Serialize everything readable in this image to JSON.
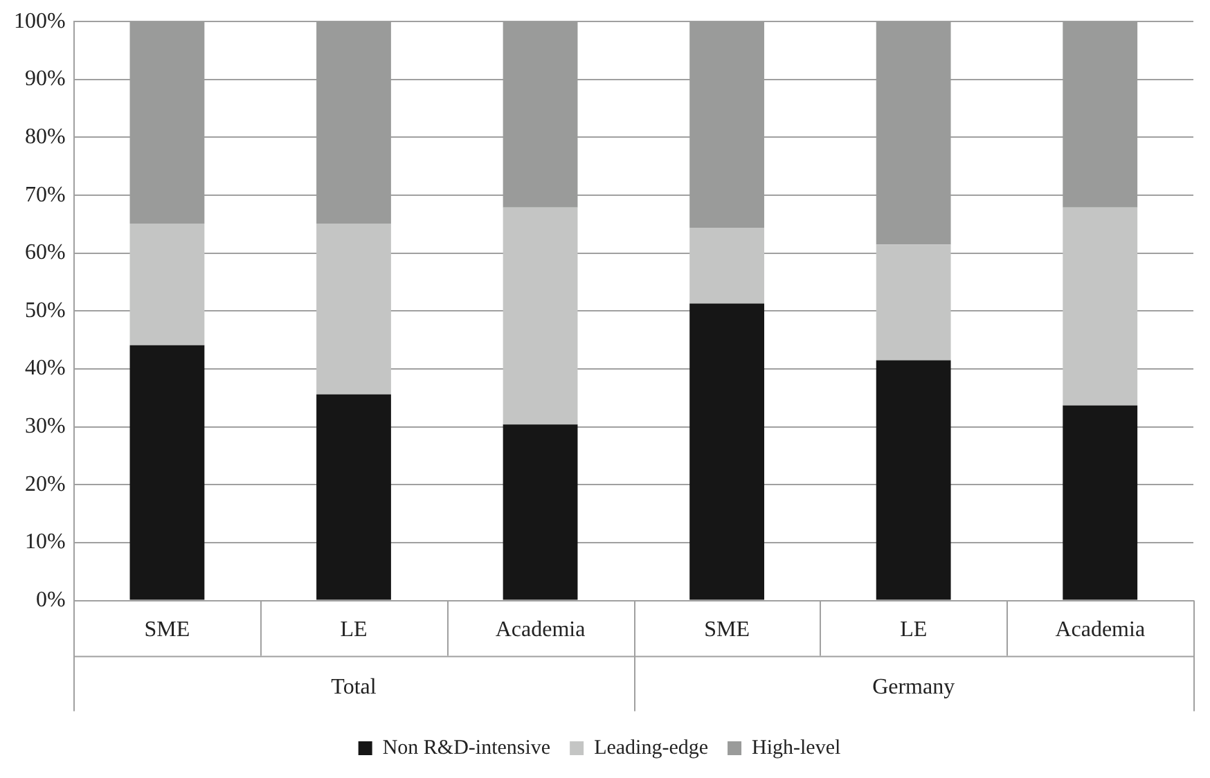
{
  "chart_data": {
    "type": "bar",
    "stacked": true,
    "categories": [
      "SME",
      "LE",
      "Academia",
      "SME",
      "LE",
      "Academia"
    ],
    "series": [
      {
        "name": "Non R&D-intensive",
        "color": "#161616",
        "values": [
          44.1,
          35.6,
          30.4,
          51.3,
          41.5,
          33.7
        ]
      },
      {
        "name": "Leading-edge",
        "color": "#c4c5c4",
        "values": [
          21.0,
          29.5,
          37.5,
          13.1,
          20.0,
          34.2
        ]
      },
      {
        "name": "High-level",
        "color": "#9a9b9a",
        "values": [
          34.9,
          34.9,
          32.1,
          35.6,
          38.5,
          32.1
        ]
      }
    ],
    "ylim": [
      0,
      100
    ],
    "yticks": [
      {
        "value": 0,
        "label": "0%"
      },
      {
        "value": 10,
        "label": "10%"
      },
      {
        "value": 20,
        "label": "20%"
      },
      {
        "value": 30,
        "label": "30%"
      },
      {
        "value": 40,
        "label": "40%"
      },
      {
        "value": 50,
        "label": "50%"
      },
      {
        "value": 60,
        "label": "60%"
      },
      {
        "value": 70,
        "label": "70%"
      },
      {
        "value": 80,
        "label": "80%"
      },
      {
        "value": 90,
        "label": "90%"
      },
      {
        "value": 100,
        "label": "100%"
      }
    ],
    "grid": "y",
    "legend": "bottom",
    "annotations": [
      "Total",
      "Germany"
    ]
  }
}
